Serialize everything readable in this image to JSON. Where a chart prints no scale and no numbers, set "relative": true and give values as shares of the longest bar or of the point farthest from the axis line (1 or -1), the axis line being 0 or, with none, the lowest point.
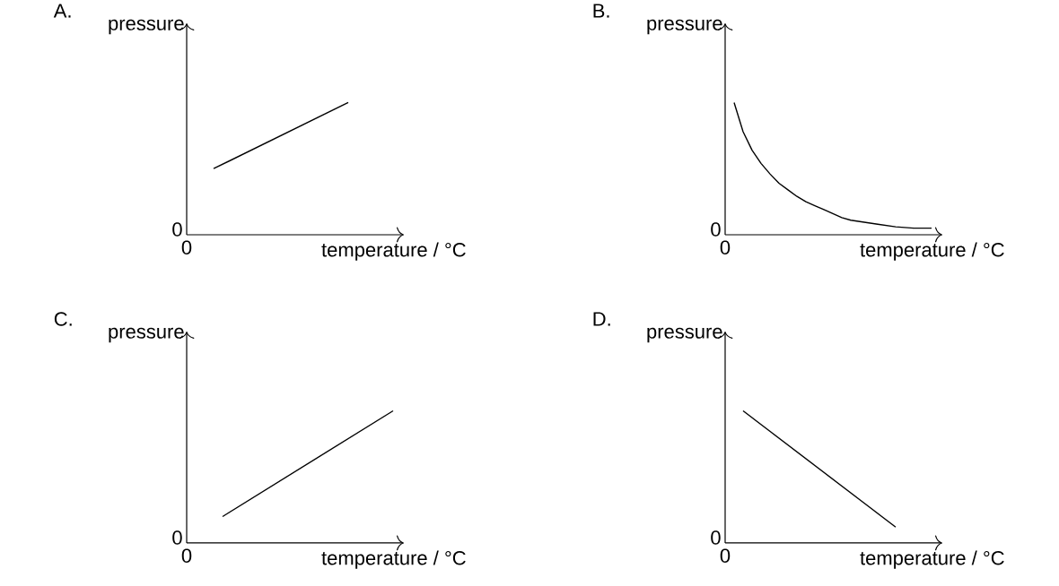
{
  "chart_data": [
    {
      "type": "line",
      "title": "A.",
      "xlabel": "temperature / °C",
      "ylabel": "pressure",
      "relative": true,
      "color": "#000000",
      "marker": "none",
      "annotations": [
        "0",
        "0"
      ],
      "categories": [
        null,
        null,
        null,
        null,
        null,
        null,
        null,
        null,
        null,
        null,
        null,
        null,
        null,
        null,
        null,
        null,
        null,
        null,
        null,
        null,
        null,
        null,
        null,
        null
      ],
      "values": [
        null,
        null,
        0.5,
        null,
        null,
        null,
        null,
        null,
        null,
        null,
        null,
        null,
        null,
        null,
        null,
        null,
        null,
        1,
        null,
        null,
        null,
        null,
        null,
        null
      ]
    },
    {
      "type": "line",
      "title": "B.",
      "xlabel": "temperature / °C",
      "ylabel": "pressure",
      "relative": true,
      "color": "#000000",
      "marker": "none",
      "annotations": [
        "0",
        "0"
      ],
      "categories": [
        null,
        null,
        null,
        null,
        null,
        null,
        null,
        null,
        null,
        null,
        null,
        null,
        null,
        null,
        null,
        null,
        null,
        null,
        null,
        null,
        null,
        null,
        null,
        null
      ],
      "values": [
        1,
        0.78,
        0.64,
        0.54,
        0.46,
        0.39,
        0.34,
        0.29,
        0.25,
        0.22,
        0.19,
        0.16,
        0.13,
        0.11,
        0.1,
        0.09,
        0.08,
        0.07,
        0.06,
        0.055,
        0.05,
        0.05,
        0.05,
        null
      ]
    },
    {
      "type": "line",
      "title": "C.",
      "xlabel": "temperature / °C",
      "ylabel": "pressure",
      "relative": true,
      "color": "#000000",
      "marker": "none",
      "annotations": [
        "0",
        "0"
      ],
      "categories": [
        null,
        null,
        null,
        null,
        null,
        null,
        null,
        null,
        null,
        null,
        null,
        null,
        null,
        null,
        null,
        null,
        null,
        null,
        null,
        null,
        null,
        null,
        null,
        null
      ],
      "values": [
        null,
        null,
        null,
        0.2,
        null,
        null,
        null,
        null,
        null,
        null,
        null,
        null,
        null,
        null,
        null,
        null,
        null,
        null,
        null,
        null,
        null,
        null,
        1,
        null
      ]
    },
    {
      "type": "line",
      "title": "D.",
      "xlabel": "temperature / °C",
      "ylabel": "pressure",
      "relative": true,
      "color": "#000000",
      "marker": "none",
      "annotations": [
        "0",
        "0"
      ],
      "categories": [
        null,
        null,
        null,
        null,
        null,
        null,
        null,
        null,
        null,
        null,
        null,
        null,
        null,
        null,
        null,
        null,
        null,
        null,
        null,
        null,
        null,
        null,
        null,
        null
      ],
      "values": [
        null,
        1,
        null,
        null,
        null,
        null,
        null,
        null,
        null,
        null,
        null,
        null,
        null,
        null,
        null,
        null,
        null,
        null,
        0.12,
        null,
        null,
        null,
        null,
        null
      ]
    }
  ]
}
